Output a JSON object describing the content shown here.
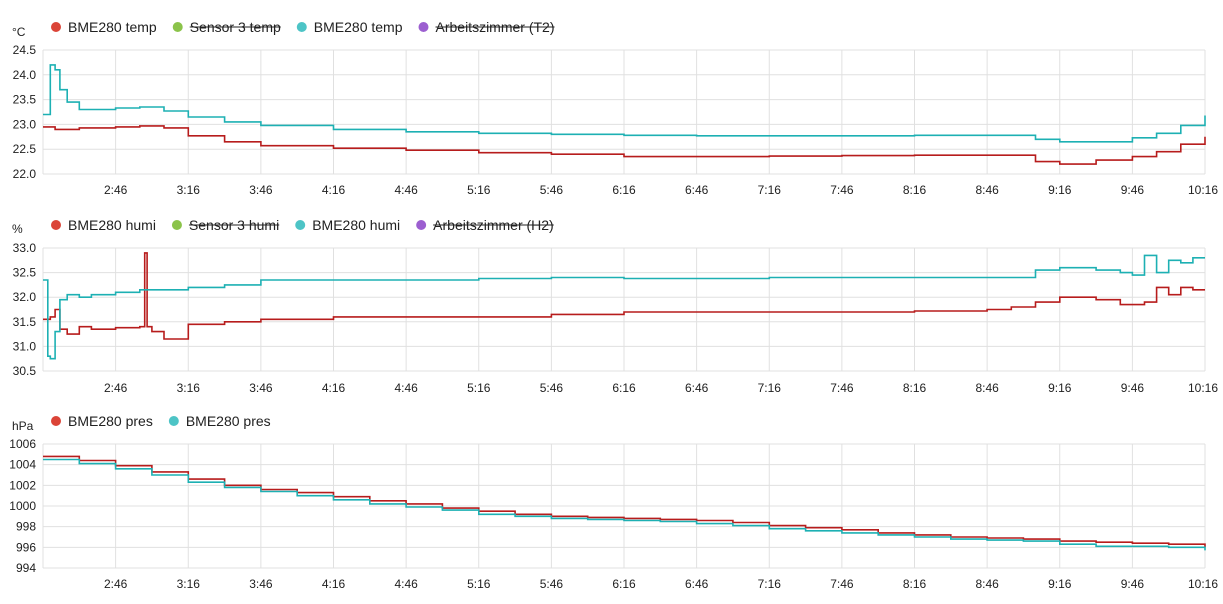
{
  "colors": {
    "bme_red": "#b71c1c",
    "legend_red": "#db4437",
    "sensor3_green": "#8bc34a",
    "bme_teal": "#1db0b3",
    "legend_teal": "#4dc4c6",
    "arbeits_purple": "#9c5fd0",
    "grid": "#e0e0e0"
  },
  "time_labels": [
    "2:46",
    "3:16",
    "3:46",
    "4:16",
    "4:46",
    "5:16",
    "5:46",
    "6:16",
    "6:46",
    "7:16",
    "7:46",
    "8:16",
    "8:46",
    "9:16",
    "9:46",
    "10:16"
  ],
  "chart_data": [
    {
      "type": "line",
      "unit": "°C",
      "ylim": [
        22.0,
        24.5
      ],
      "y_ticks": [
        "22.0",
        "22.5",
        "23.0",
        "23.5",
        "24.0",
        "24.5"
      ],
      "x_range": [
        "2:16",
        "10:16"
      ],
      "series": [
        {
          "name": "BME280 temp",
          "legend_color": "#db4437",
          "line_color": "#b71c1c",
          "hidden": false,
          "x": [
            "2:16",
            "2:21",
            "2:31",
            "2:46",
            "2:56",
            "3:06",
            "3:16",
            "3:31",
            "3:46",
            "4:16",
            "4:46",
            "5:16",
            "5:46",
            "6:16",
            "6:46",
            "7:16",
            "7:46",
            "8:16",
            "8:46",
            "9:06",
            "9:16",
            "9:31",
            "9:46",
            "9:56",
            "10:06",
            "10:16"
          ],
          "y": [
            22.95,
            22.9,
            22.93,
            22.95,
            22.97,
            22.93,
            22.77,
            22.65,
            22.57,
            22.52,
            22.48,
            22.43,
            22.4,
            22.35,
            22.35,
            22.36,
            22.37,
            22.38,
            22.38,
            22.25,
            22.2,
            22.28,
            22.35,
            22.45,
            22.6,
            22.75
          ]
        },
        {
          "name": "Sensor 3 temp",
          "legend_color": "#8bc34a",
          "hidden": true
        },
        {
          "name": "BME280 temp",
          "legend_color": "#4dc4c6",
          "line_color": "#1db0b3",
          "hidden": false,
          "x": [
            "2:16",
            "2:18",
            "2:19",
            "2:21",
            "2:23",
            "2:26",
            "2:31",
            "2:46",
            "2:56",
            "3:06",
            "3:16",
            "3:31",
            "3:46",
            "4:16",
            "4:46",
            "5:16",
            "5:46",
            "6:16",
            "6:46",
            "7:16",
            "7:46",
            "8:16",
            "8:46",
            "9:06",
            "9:16",
            "9:31",
            "9:46",
            "9:56",
            "10:06",
            "10:16"
          ],
          "y": [
            23.2,
            23.2,
            24.2,
            24.1,
            23.7,
            23.45,
            23.3,
            23.33,
            23.35,
            23.27,
            23.15,
            23.05,
            22.98,
            22.9,
            22.85,
            22.82,
            22.8,
            22.78,
            22.77,
            22.77,
            22.77,
            22.78,
            22.78,
            22.7,
            22.65,
            22.65,
            22.73,
            22.82,
            22.98,
            23.18
          ]
        },
        {
          "name": "Arbeitszimmer (T2)",
          "legend_color": "#9c5fd0",
          "hidden": true
        }
      ]
    },
    {
      "type": "line",
      "unit": "%",
      "ylim": [
        30.5,
        33.0
      ],
      "y_ticks": [
        "30.5",
        "31.0",
        "31.5",
        "32.0",
        "32.5",
        "33.0"
      ],
      "x_range": [
        "2:16",
        "10:16"
      ],
      "series": [
        {
          "name": "BME280 humi",
          "legend_color": "#db4437",
          "line_color": "#b71c1c",
          "hidden": false,
          "x": [
            "2:16",
            "2:19",
            "2:21",
            "2:23",
            "2:26",
            "2:31",
            "2:36",
            "2:46",
            "2:56",
            "2:58",
            "2:59",
            "3:01",
            "3:06",
            "3:16",
            "3:31",
            "3:46",
            "4:16",
            "4:46",
            "5:16",
            "5:46",
            "6:16",
            "6:46",
            "7:16",
            "7:46",
            "8:16",
            "8:46",
            "8:56",
            "9:06",
            "9:16",
            "9:31",
            "9:41",
            "9:46",
            "9:51",
            "9:56",
            "10:01",
            "10:06",
            "10:11",
            "10:16"
          ],
          "y": [
            31.55,
            31.6,
            31.75,
            31.35,
            31.25,
            31.4,
            31.35,
            31.38,
            31.4,
            32.9,
            31.4,
            31.3,
            31.15,
            31.45,
            31.5,
            31.55,
            31.6,
            31.6,
            31.6,
            31.65,
            31.7,
            31.7,
            31.7,
            31.7,
            31.72,
            31.75,
            31.8,
            31.9,
            32.0,
            31.95,
            31.85,
            31.85,
            31.9,
            32.2,
            32.05,
            32.2,
            32.15,
            32.15
          ]
        },
        {
          "name": "Sensor 3 humi",
          "legend_color": "#8bc34a",
          "hidden": true
        },
        {
          "name": "BME280 humi",
          "legend_color": "#4dc4c6",
          "line_color": "#1db0b3",
          "hidden": false,
          "x": [
            "2:16",
            "2:18",
            "2:19",
            "2:21",
            "2:23",
            "2:26",
            "2:31",
            "2:36",
            "2:46",
            "2:56",
            "3:06",
            "3:16",
            "3:31",
            "3:46",
            "4:16",
            "4:46",
            "5:16",
            "5:46",
            "6:16",
            "6:46",
            "7:16",
            "7:46",
            "8:16",
            "8:46",
            "9:06",
            "9:16",
            "9:31",
            "9:41",
            "9:46",
            "9:51",
            "9:56",
            "10:01",
            "10:06",
            "10:11",
            "10:16"
          ],
          "y": [
            32.35,
            30.8,
            30.75,
            31.3,
            31.95,
            32.05,
            32.0,
            32.05,
            32.1,
            32.15,
            32.15,
            32.2,
            32.25,
            32.35,
            32.35,
            32.35,
            32.38,
            32.4,
            32.38,
            32.38,
            32.4,
            32.4,
            32.4,
            32.4,
            32.55,
            32.6,
            32.55,
            32.5,
            32.45,
            32.85,
            32.5,
            32.75,
            32.7,
            32.8,
            32.8
          ]
        },
        {
          "name": "Arbeitszimmer (H2)",
          "legend_color": "#9c5fd0",
          "hidden": true
        }
      ]
    },
    {
      "type": "line",
      "unit": "hPa",
      "ylim": [
        994,
        1006
      ],
      "y_ticks": [
        "994",
        "996",
        "998",
        "1000",
        "1002",
        "1004",
        "1006"
      ],
      "x_range": [
        "2:16",
        "10:16"
      ],
      "series": [
        {
          "name": "BME280 pres",
          "legend_color": "#db4437",
          "line_color": "#b71c1c",
          "hidden": false,
          "x": [
            "2:16",
            "2:31",
            "2:46",
            "3:01",
            "3:16",
            "3:31",
            "3:46",
            "4:01",
            "4:16",
            "4:31",
            "4:46",
            "5:01",
            "5:16",
            "5:31",
            "5:46",
            "6:01",
            "6:16",
            "6:31",
            "6:46",
            "7:01",
            "7:16",
            "7:31",
            "7:46",
            "8:01",
            "8:16",
            "8:31",
            "8:46",
            "9:01",
            "9:16",
            "9:31",
            "9:46",
            "10:01",
            "10:16"
          ],
          "y": [
            1004.8,
            1004.4,
            1003.9,
            1003.3,
            1002.6,
            1002.0,
            1001.6,
            1001.3,
            1000.9,
            1000.5,
            1000.2,
            999.8,
            999.5,
            999.2,
            999.0,
            998.9,
            998.8,
            998.7,
            998.6,
            998.4,
            998.1,
            997.9,
            997.7,
            997.4,
            997.2,
            997.0,
            996.9,
            996.8,
            996.6,
            996.5,
            996.4,
            996.3,
            996.0
          ]
        },
        {
          "name": "BME280 pres",
          "legend_color": "#4dc4c6",
          "line_color": "#1db0b3",
          "hidden": false,
          "x": [
            "2:16",
            "2:31",
            "2:46",
            "3:01",
            "3:16",
            "3:31",
            "3:46",
            "4:01",
            "4:16",
            "4:31",
            "4:46",
            "5:01",
            "5:16",
            "5:31",
            "5:46",
            "6:01",
            "6:16",
            "6:31",
            "6:46",
            "7:01",
            "7:16",
            "7:31",
            "7:46",
            "8:01",
            "8:16",
            "8:31",
            "8:46",
            "9:01",
            "9:16",
            "9:31",
            "9:46",
            "10:01",
            "10:16"
          ],
          "y": [
            1004.5,
            1004.1,
            1003.6,
            1003.0,
            1002.3,
            1001.8,
            1001.4,
            1001.0,
            1000.6,
            1000.2,
            999.9,
            999.6,
            999.2,
            999.0,
            998.8,
            998.7,
            998.6,
            998.5,
            998.3,
            998.1,
            997.8,
            997.6,
            997.4,
            997.2,
            997.0,
            996.8,
            996.7,
            996.6,
            996.3,
            996.1,
            996.1,
            996.0,
            995.7
          ]
        }
      ]
    }
  ]
}
